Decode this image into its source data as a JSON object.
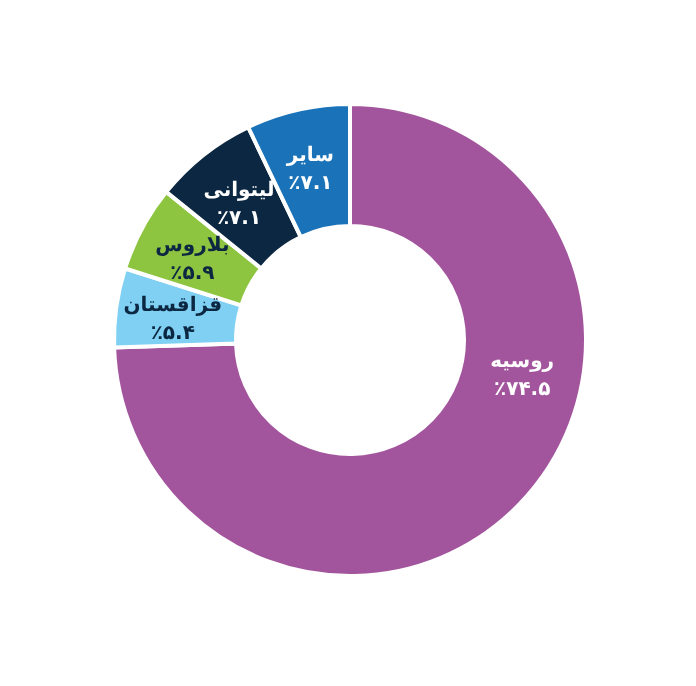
{
  "chart_data": {
    "type": "donut",
    "categories": [
      "روسیه",
      "قزاقستان",
      "بلاروس",
      "لیتوانی",
      "سایر"
    ],
    "values": [
      74.5,
      5.4,
      5.9,
      7.1,
      7.1
    ],
    "colors": [
      "#a2559c",
      "#7fd0f3",
      "#8dc540",
      "#0b2741",
      "#1a72b8"
    ],
    "value_labels": [
      "٪۷۴.۵",
      "٪۵.۴",
      "٪۵.۹",
      "٪۷.۱",
      "٪۷.۱"
    ]
  }
}
